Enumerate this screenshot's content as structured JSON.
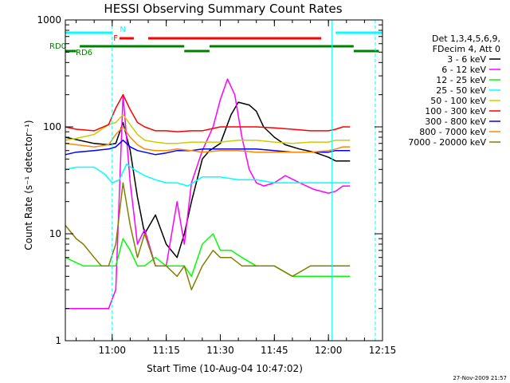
{
  "chart_data": {
    "type": "line",
    "title": "HESSI Observing Summary Count Rates",
    "xlabel": "Start Time (10-Aug-04 10:47:02)",
    "ylabel": "Count Rate (s⁻¹ detector⁻¹)",
    "yscale": "log",
    "ylim": [
      1,
      1000
    ],
    "xlim_minutes": [
      -13,
      75
    ],
    "x_ticks": [
      {
        "label": "11:00",
        "minutes": 0
      },
      {
        "label": "11:15",
        "minutes": 15
      },
      {
        "label": "11:30",
        "minutes": 30
      },
      {
        "label": "11:45",
        "minutes": 45
      },
      {
        "label": "12:00",
        "minutes": 60
      },
      {
        "label": "12:15",
        "minutes": 75
      }
    ],
    "y_ticks": [
      {
        "label": "1",
        "value": 1
      },
      {
        "label": "10",
        "value": 10
      },
      {
        "label": "100",
        "value": 100
      },
      {
        "label": "1000",
        "value": 1000
      }
    ],
    "grid": false,
    "legend_position": "right",
    "legend_header": [
      "Det 1,3,4,5,6,9,",
      "FDecim 4, Att 0"
    ],
    "series": [
      {
        "name": "3 - 6 keV",
        "color": "#000000",
        "x": [
          -13,
          -5,
          -1,
          1,
          3,
          5,
          7,
          9,
          12,
          15,
          18,
          20,
          22,
          25,
          27,
          30,
          33,
          35,
          38,
          40,
          42,
          45,
          48,
          52,
          56,
          60,
          62,
          64,
          66
        ],
        "y": [
          80,
          70,
          68,
          70,
          110,
          60,
          22,
          10,
          15,
          8,
          6,
          10,
          20,
          50,
          60,
          70,
          130,
          170,
          160,
          140,
          100,
          80,
          68,
          62,
          58,
          52,
          48,
          48,
          48
        ]
      },
      {
        "name": "6 - 12 keV",
        "color": "#ff00ff",
        "x": [
          -13,
          -8,
          -6,
          -4,
          -3,
          -1,
          1,
          3,
          5,
          7,
          9,
          12,
          15,
          18,
          20,
          22,
          25,
          28,
          30,
          32,
          34,
          36,
          38,
          40,
          42,
          45,
          48,
          52,
          56,
          60,
          62,
          64,
          66
        ],
        "y": [
          2,
          2,
          2,
          2,
          2,
          2,
          3,
          200,
          30,
          8,
          11,
          5,
          5,
          20,
          8,
          30,
          60,
          100,
          180,
          280,
          200,
          80,
          40,
          30,
          28,
          30,
          35,
          30,
          26,
          24,
          25,
          28,
          28
        ]
      },
      {
        "name": "12 - 25 keV",
        "color": "#00ff00",
        "x": [
          -13,
          -8,
          -6,
          -4,
          -3,
          -1,
          1,
          3,
          5,
          7,
          9,
          12,
          15,
          18,
          20,
          22,
          25,
          28,
          30,
          33,
          36,
          40,
          45,
          50,
          55,
          60,
          62,
          64,
          66
        ],
        "y": [
          6,
          5,
          5,
          5,
          5,
          5,
          5,
          9,
          7,
          5,
          5,
          6,
          5,
          5,
          5,
          4,
          8,
          10,
          7,
          7,
          6,
          5,
          5,
          4,
          4,
          4,
          4,
          4,
          4
        ]
      },
      {
        "name": "25 - 50 keV",
        "color": "#00ffff",
        "x": [
          -13,
          -10,
          -5,
          -2,
          0,
          2,
          4,
          6,
          9,
          12,
          15,
          18,
          21,
          25,
          30,
          35,
          40,
          45,
          50,
          55,
          60,
          62,
          64,
          66
        ],
        "y": [
          40,
          42,
          42,
          36,
          30,
          32,
          45,
          40,
          35,
          32,
          30,
          30,
          28,
          34,
          34,
          32,
          32,
          30,
          30,
          30,
          30,
          30,
          30,
          30
        ]
      },
      {
        "name": "50 - 100 keV",
        "color": "#cccc00",
        "x": [
          -13,
          -10,
          -5,
          -1,
          1,
          3,
          5,
          7,
          9,
          12,
          15,
          18,
          22,
          25,
          30,
          35,
          40,
          45,
          50,
          55,
          60,
          62,
          64,
          66
        ],
        "y": [
          75,
          78,
          85,
          105,
          110,
          130,
          105,
          85,
          75,
          72,
          70,
          70,
          72,
          72,
          72,
          75,
          75,
          72,
          70,
          72,
          72,
          75,
          75,
          75
        ]
      },
      {
        "name": "100 - 300 keV",
        "color": "#ff0000",
        "x": [
          -13,
          -10,
          -5,
          -1,
          1,
          3,
          5,
          7,
          9,
          12,
          15,
          18,
          22,
          25,
          30,
          35,
          40,
          45,
          50,
          55,
          60,
          62,
          64,
          66
        ],
        "y": [
          100,
          95,
          92,
          105,
          150,
          200,
          145,
          110,
          100,
          92,
          92,
          90,
          92,
          92,
          100,
          100,
          100,
          98,
          95,
          92,
          92,
          95,
          100,
          100
        ]
      },
      {
        "name": "300 - 800 keV",
        "color": "#0000ff",
        "x": [
          -13,
          -10,
          -5,
          -1,
          1,
          3,
          5,
          7,
          9,
          12,
          15,
          18,
          22,
          25,
          30,
          35,
          40,
          45,
          50,
          55,
          60,
          62,
          64,
          66
        ],
        "y": [
          55,
          58,
          60,
          62,
          65,
          75,
          65,
          60,
          58,
          55,
          57,
          60,
          60,
          62,
          62,
          62,
          62,
          60,
          58,
          58,
          58,
          60,
          60,
          60
        ]
      },
      {
        "name": "800 - 7000 keV",
        "color": "#ff8800",
        "x": [
          -13,
          -10,
          -5,
          -1,
          1,
          3,
          5,
          7,
          9,
          12,
          15,
          18,
          22,
          25,
          30,
          35,
          40,
          45,
          50,
          55,
          60,
          62,
          64,
          66
        ],
        "y": [
          70,
          68,
          65,
          68,
          85,
          100,
          80,
          68,
          62,
          60,
          60,
          62,
          60,
          58,
          60,
          60,
          58,
          58,
          58,
          58,
          60,
          62,
          65,
          65
        ]
      },
      {
        "name": "7000 - 20000 keV",
        "color": "#808000",
        "x": [
          -13,
          -10,
          -8,
          -5,
          -3,
          -1,
          1,
          3,
          5,
          7,
          9,
          12,
          15,
          18,
          20,
          22,
          25,
          28,
          30,
          33,
          36,
          40,
          45,
          50,
          55,
          60,
          62,
          64,
          66
        ],
        "y": [
          12,
          9,
          8,
          6,
          5,
          5,
          8,
          30,
          12,
          6,
          10,
          5,
          5,
          4,
          5,
          3,
          5,
          7,
          6,
          6,
          5,
          5,
          5,
          4,
          5,
          5,
          5,
          5,
          5
        ]
      }
    ],
    "flag_labels": {
      "n": "N",
      "f": "F",
      "rd0": "RD0",
      "rd6": "RD6"
    },
    "flag_colors": {
      "n": "#00ffff",
      "f": "#ff0000",
      "rd0": "#008000",
      "rd6": "#008000"
    },
    "annotation_date": "27-Nov-2009 21:57"
  }
}
